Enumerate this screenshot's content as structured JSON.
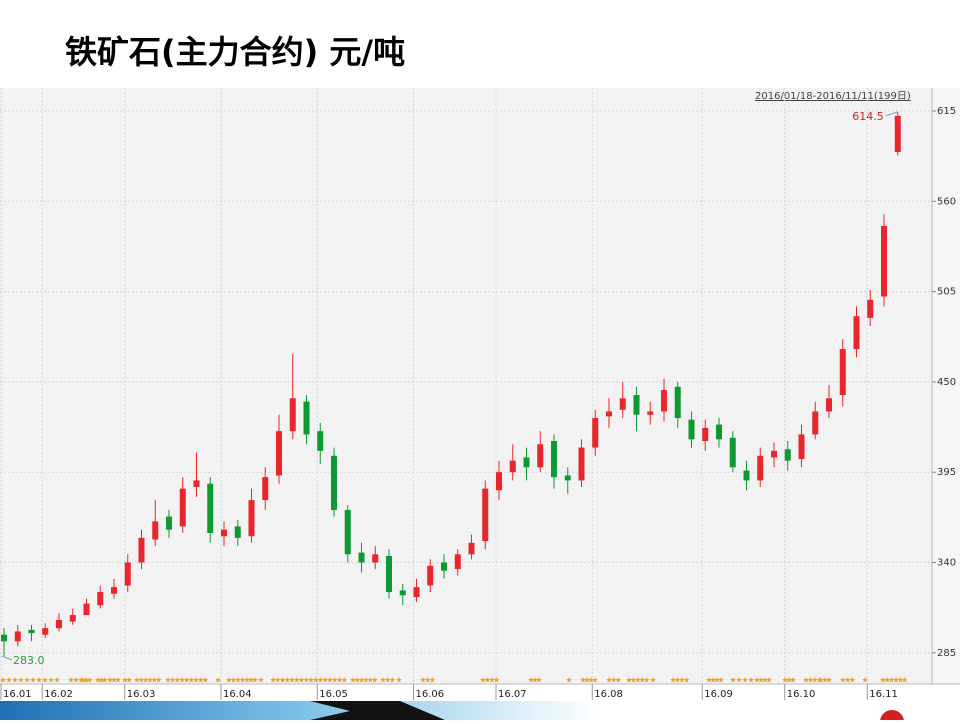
{
  "chart_data": {
    "type": "candlestick",
    "title": "铁矿石(主力合约) 元/吨",
    "subtitle": "2016/01/18-2016/11/11(199日)",
    "categories": [
      "16.01",
      null,
      null,
      "16.02",
      null,
      null,
      null,
      null,
      null,
      "16.03",
      null,
      null,
      null,
      null,
      null,
      null,
      "16.04",
      null,
      null,
      null,
      null,
      null,
      null,
      "16.05",
      null,
      null,
      null,
      null,
      null,
      null,
      "16.06",
      null,
      null,
      null,
      null,
      null,
      "16.07",
      null,
      null,
      null,
      null,
      null,
      null,
      "16.08",
      null,
      null,
      null,
      null,
      null,
      null,
      null,
      "16.09",
      null,
      null,
      null,
      null,
      null,
      "16.10",
      null,
      null,
      null,
      null,
      null,
      "16.11",
      null,
      null
    ],
    "open": [
      296,
      292,
      299,
      296,
      300,
      304,
      308,
      314,
      321,
      326,
      340,
      354,
      368,
      362,
      386,
      388,
      356,
      362,
      356,
      378,
      393,
      420,
      438,
      420,
      405,
      372,
      346,
      340,
      344,
      323,
      319,
      326,
      340,
      336,
      345,
      353,
      384,
      395,
      404,
      398,
      414,
      393,
      390,
      410,
      429,
      433,
      442,
      430,
      432,
      447,
      427,
      414,
      424,
      416,
      396,
      390,
      404,
      409,
      403,
      418,
      432,
      442,
      470,
      489,
      502,
      590
    ],
    "high": [
      300,
      302,
      302,
      303,
      309,
      312,
      318,
      326,
      330,
      345,
      360,
      378,
      372,
      392,
      407,
      392,
      365,
      366,
      385,
      398,
      430,
      467,
      442,
      425,
      410,
      375,
      352,
      350,
      348,
      327,
      330,
      342,
      345,
      348,
      357,
      390,
      402,
      412,
      410,
      420,
      418,
      398,
      415,
      433,
      440,
      450,
      447,
      438,
      452,
      450,
      432,
      427,
      428,
      420,
      402,
      410,
      413,
      414,
      424,
      438,
      448,
      476,
      496,
      506,
      552,
      614.5
    ],
    "low": [
      283,
      289,
      292,
      294,
      298,
      302,
      308,
      312,
      318,
      322,
      336,
      350,
      355,
      358,
      380,
      352,
      350,
      350,
      352,
      372,
      388,
      415,
      412,
      400,
      368,
      340,
      334,
      336,
      318,
      314,
      316,
      322,
      330,
      332,
      342,
      348,
      378,
      390,
      390,
      395,
      385,
      382,
      386,
      405,
      422,
      428,
      420,
      424,
      426,
      422,
      410,
      408,
      410,
      395,
      384,
      386,
      398,
      396,
      398,
      415,
      428,
      435,
      465,
      484,
      496,
      588
    ],
    "close": [
      292,
      298,
      297,
      300,
      305,
      308,
      315,
      322,
      325,
      340,
      355,
      365,
      360,
      385,
      390,
      358,
      360,
      355,
      378,
      392,
      420,
      440,
      418,
      408,
      372,
      345,
      340,
      345,
      322,
      320,
      325,
      338,
      335,
      345,
      352,
      385,
      395,
      402,
      398,
      412,
      392,
      390,
      410,
      428,
      432,
      440,
      430,
      432,
      445,
      428,
      415,
      422,
      415,
      398,
      390,
      405,
      408,
      402,
      418,
      432,
      440,
      470,
      490,
      500,
      545,
      612
    ],
    "up_color": "#e8262b",
    "down_color": "#0e9a33",
    "annotations": [
      {
        "value": 614.5,
        "label": "614.5",
        "color": "#d42020"
      },
      {
        "value": 283,
        "label": "283.0",
        "color": "#2b9a3a"
      }
    ],
    "ylim": [
      266,
      629
    ],
    "yticks": [
      285,
      340,
      395,
      450,
      505,
      560,
      615
    ],
    "grid": true
  }
}
